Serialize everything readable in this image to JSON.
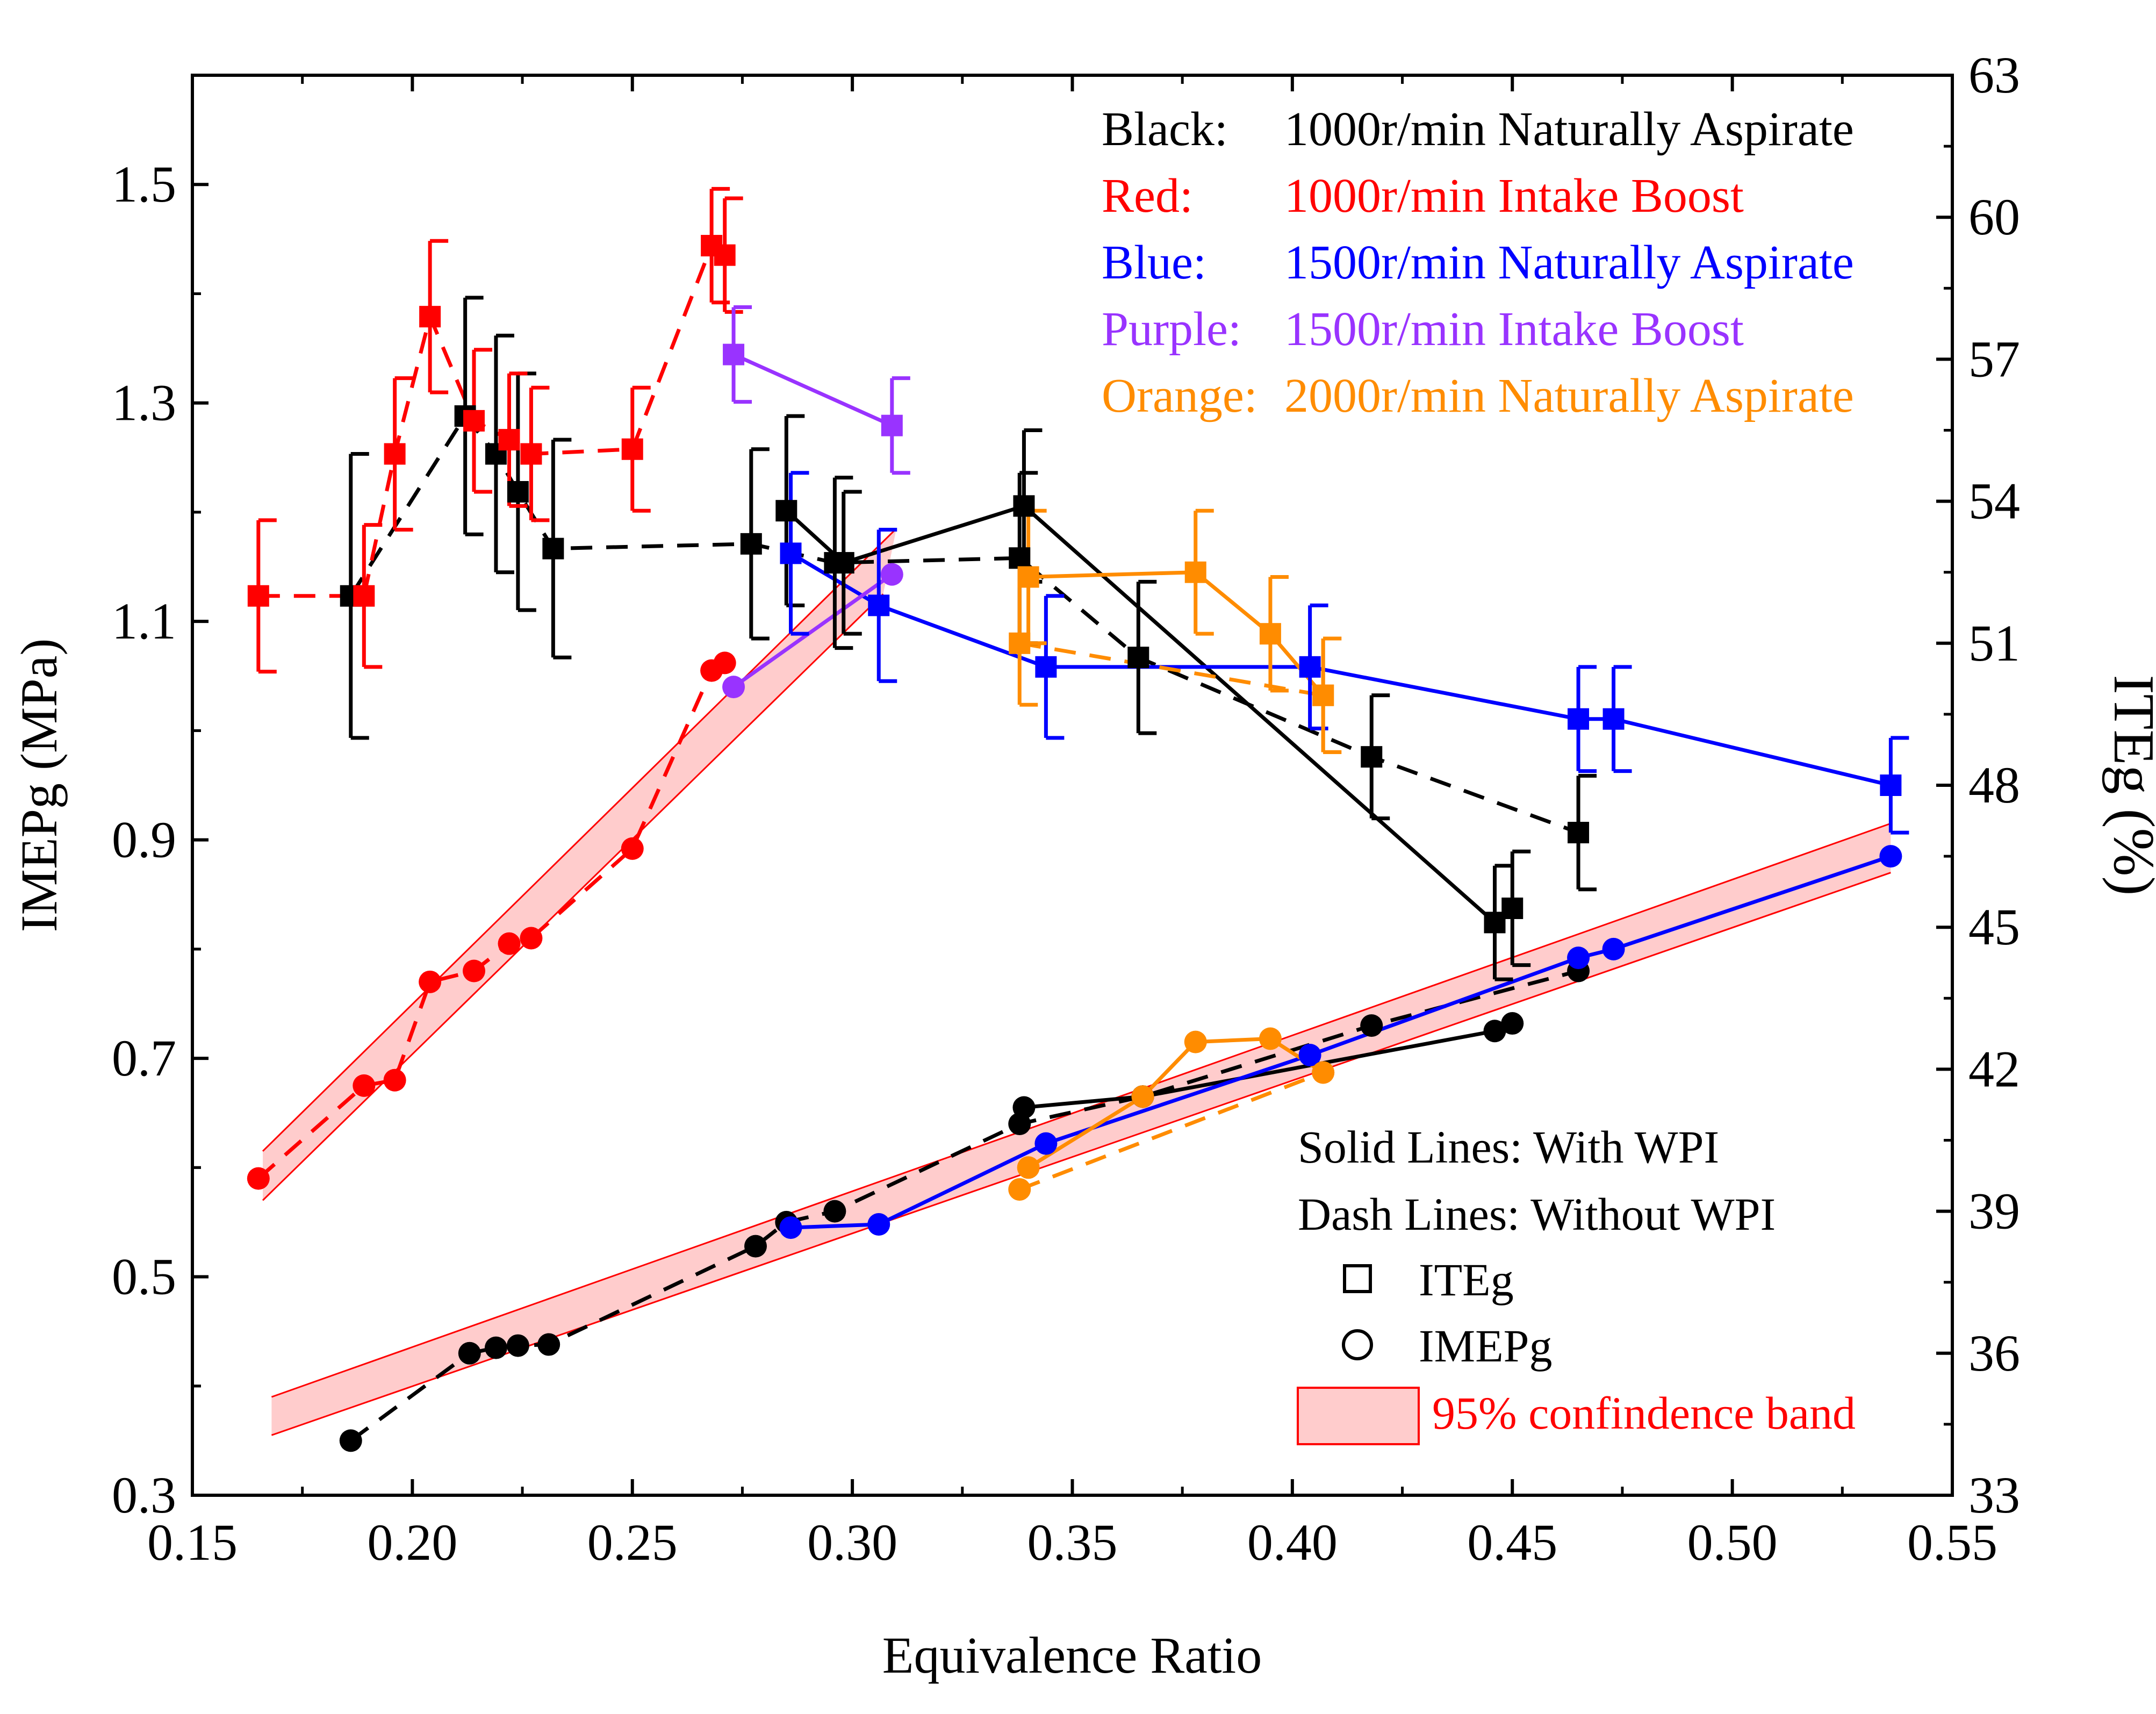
{
  "chart_data": {
    "type": "line",
    "xlabel": "Equivalence Ratio",
    "ylabel_left": "IMEPg (MPa)",
    "ylabel_right": "ITEg (%)",
    "xlim": [
      0.15,
      0.55
    ],
    "ylim_left": [
      0.3,
      1.6
    ],
    "ylim_right": [
      33,
      63
    ],
    "x_ticks": [
      "0.15",
      "0.20",
      "0.25",
      "0.30",
      "0.35",
      "0.40",
      "0.45",
      "0.50",
      "0.55"
    ],
    "y_left_ticks": [
      "0.3",
      "0.5",
      "0.7",
      "0.9",
      "1.1",
      "1.3",
      "1.5"
    ],
    "y_right_ticks": [
      "33",
      "36",
      "39",
      "42",
      "45",
      "48",
      "51",
      "54",
      "57",
      "60",
      "63"
    ],
    "legend_conditions": [
      {
        "prefix": "Black:",
        "text": "1000r/min Naturally Aspirate",
        "color": "#000000"
      },
      {
        "prefix": "Red:",
        "text": "1000r/min Intake Boost",
        "color": "#ff0000"
      },
      {
        "prefix": "Blue:",
        "text": "1500r/min Naturally Aspirate",
        "color": "#0000ff"
      },
      {
        "prefix": "Purple:",
        "text": "1500r/min Intake Boost",
        "color": "#9933ff"
      },
      {
        "prefix": "Orange:",
        "text": "2000r/min Naturally Aspirate",
        "color": "#ff8c00"
      }
    ],
    "legend_styles": {
      "solid": "Solid Lines: With WPI",
      "dash": "Dash Lines: Without WPI",
      "square": "ITEg",
      "circle": "IMEPg",
      "band": "95% confindence band"
    },
    "confidence_bands": [
      {
        "lower": [
          [
            0.166,
            0.57
          ],
          [
            0.307,
            1.125
          ]
        ],
        "upper": [
          [
            0.166,
            0.615
          ],
          [
            0.31,
            1.185
          ]
        ]
      },
      {
        "lower": [
          [
            0.168,
            0.355
          ],
          [
            0.536,
            0.87
          ]
        ],
        "upper": [
          [
            0.168,
            0.39
          ],
          [
            0.536,
            0.915
          ]
        ]
      }
    ],
    "series": [
      {
        "name": "Black ITEg without WPI",
        "color": "#000000",
        "dash": true,
        "marker": "square",
        "axis": "right",
        "points": [
          [
            0.186,
            52.0,
            3.0
          ],
          [
            0.212,
            55.8,
            2.5
          ],
          [
            0.219,
            55.0,
            2.5
          ],
          [
            0.224,
            54.2,
            2.5
          ],
          [
            0.232,
            53.0,
            2.3
          ],
          [
            0.277,
            53.1,
            2.0
          ],
          [
            0.296,
            52.7,
            1.8
          ],
          [
            0.338,
            52.8,
            1.8
          ],
          [
            0.365,
            50.7,
            1.6
          ],
          [
            0.418,
            48.6,
            1.3
          ],
          [
            0.465,
            47.0,
            1.2
          ]
        ]
      },
      {
        "name": "Black ITEg with WPI",
        "color": "#000000",
        "dash": false,
        "marker": "square",
        "axis": "right",
        "points": [
          [
            0.285,
            53.8,
            2.0
          ],
          [
            0.298,
            52.7,
            1.5
          ],
          [
            0.339,
            53.9,
            1.6
          ],
          [
            0.446,
            45.1,
            1.2
          ],
          [
            0.45,
            45.4,
            1.2
          ]
        ]
      },
      {
        "name": "Red ITEg",
        "color": "#ff0000",
        "dash": true,
        "marker": "square",
        "axis": "right",
        "points": [
          [
            0.165,
            52.0,
            1.6
          ],
          [
            0.189,
            52.0,
            1.5
          ],
          [
            0.196,
            55.0,
            1.6
          ],
          [
            0.204,
            57.9,
            1.6
          ],
          [
            0.214,
            55.7,
            1.5
          ],
          [
            0.222,
            55.3,
            1.4
          ],
          [
            0.227,
            55.0,
            1.4
          ],
          [
            0.25,
            55.1,
            1.3
          ],
          [
            0.268,
            59.4,
            1.2
          ],
          [
            0.271,
            59.2,
            1.2
          ]
        ]
      },
      {
        "name": "Purple ITEg",
        "color": "#9933ff",
        "dash": false,
        "marker": "square",
        "axis": "right",
        "points": [
          [
            0.273,
            57.1,
            1.0
          ],
          [
            0.309,
            55.6,
            1.0
          ]
        ]
      },
      {
        "name": "Blue ITEg",
        "color": "#0000ff",
        "dash": false,
        "marker": "square",
        "axis": "right",
        "points": [
          [
            0.286,
            52.9,
            1.7
          ],
          [
            0.306,
            51.8,
            1.6
          ],
          [
            0.344,
            50.5,
            1.5
          ],
          [
            0.404,
            50.5,
            1.3
          ],
          [
            0.465,
            49.4,
            1.1
          ],
          [
            0.473,
            49.4,
            1.1
          ],
          [
            0.536,
            48.0,
            1.0
          ]
        ]
      },
      {
        "name": "Orange ITEg with WPI",
        "color": "#ff8c00",
        "dash": false,
        "marker": "square",
        "axis": "right",
        "points": [
          [
            0.34,
            52.4,
            1.4
          ],
          [
            0.378,
            52.5,
            1.3
          ],
          [
            0.395,
            51.2,
            1.2
          ],
          [
            0.407,
            49.9,
            1.2
          ]
        ]
      },
      {
        "name": "Orange ITEg without WPI",
        "color": "#ff8c00",
        "dash": true,
        "marker": "square",
        "axis": "right",
        "points": [
          [
            0.338,
            51.0,
            1.3
          ],
          [
            0.407,
            49.9,
            1.2
          ]
        ]
      },
      {
        "name": "Black IMEPg without WPI",
        "color": "#000000",
        "dash": true,
        "marker": "circle",
        "axis": "left",
        "points": [
          [
            0.186,
            0.35
          ],
          [
            0.213,
            0.43
          ],
          [
            0.219,
            0.435
          ],
          [
            0.224,
            0.437
          ],
          [
            0.231,
            0.438
          ],
          [
            0.278,
            0.528
          ],
          [
            0.285,
            0.55
          ],
          [
            0.296,
            0.56
          ],
          [
            0.338,
            0.64
          ],
          [
            0.366,
            0.665
          ],
          [
            0.418,
            0.73
          ],
          [
            0.465,
            0.78
          ]
        ]
      },
      {
        "name": "Black IMEPg with WPI",
        "color": "#000000",
        "dash": false,
        "marker": "circle",
        "axis": "left",
        "points": [
          [
            0.339,
            0.655
          ],
          [
            0.366,
            0.665
          ],
          [
            0.446,
            0.725
          ],
          [
            0.45,
            0.732
          ]
        ]
      },
      {
        "name": "Red IMEPg",
        "color": "#ff0000",
        "dash": true,
        "marker": "circle",
        "axis": "left",
        "points": [
          [
            0.165,
            0.59
          ],
          [
            0.189,
            0.675
          ],
          [
            0.196,
            0.68
          ],
          [
            0.204,
            0.77
          ],
          [
            0.214,
            0.78
          ],
          [
            0.222,
            0.805
          ],
          [
            0.227,
            0.81
          ],
          [
            0.25,
            0.892
          ],
          [
            0.268,
            1.055
          ],
          [
            0.271,
            1.062
          ]
        ]
      },
      {
        "name": "Purple IMEPg",
        "color": "#9933ff",
        "dash": false,
        "marker": "circle",
        "axis": "left",
        "points": [
          [
            0.273,
            1.04
          ],
          [
            0.309,
            1.143
          ]
        ]
      },
      {
        "name": "Blue IMEPg",
        "color": "#0000ff",
        "dash": false,
        "marker": "circle",
        "axis": "left",
        "points": [
          [
            0.286,
            0.545
          ],
          [
            0.306,
            0.548
          ],
          [
            0.344,
            0.622
          ],
          [
            0.404,
            0.703
          ],
          [
            0.465,
            0.792
          ],
          [
            0.473,
            0.8
          ],
          [
            0.536,
            0.885
          ]
        ]
      },
      {
        "name": "Orange IMEPg with WPI",
        "color": "#ff8c00",
        "dash": false,
        "marker": "circle",
        "axis": "left",
        "points": [
          [
            0.34,
            0.6
          ],
          [
            0.366,
            0.665
          ],
          [
            0.378,
            0.715
          ],
          [
            0.395,
            0.718
          ],
          [
            0.407,
            0.687
          ]
        ]
      },
      {
        "name": "Orange IMEPg without WPI",
        "color": "#ff8c00",
        "dash": true,
        "marker": "circle",
        "axis": "left",
        "points": [
          [
            0.338,
            0.58
          ],
          [
            0.407,
            0.687
          ]
        ]
      }
    ]
  }
}
